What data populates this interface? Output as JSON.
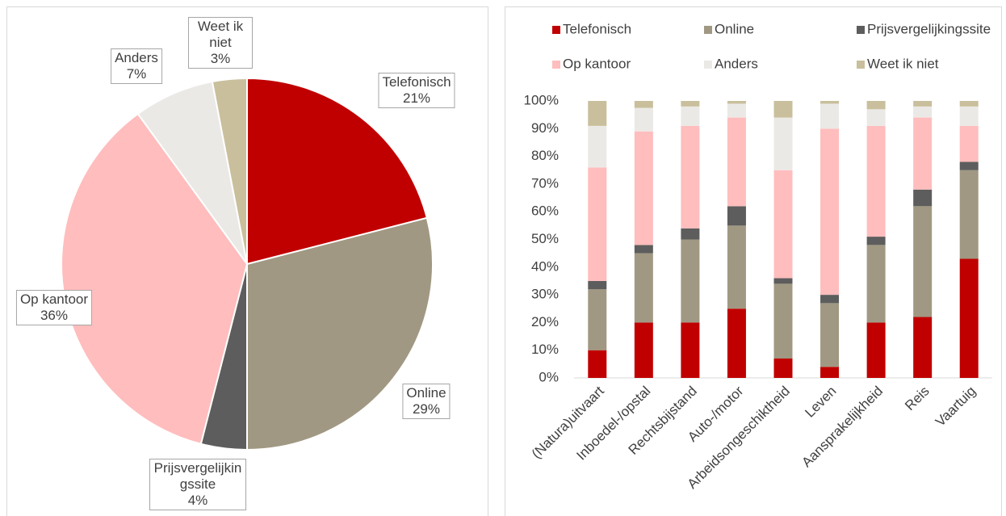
{
  "chart_data": [
    {
      "type": "pie",
      "categories": [
        "Telefonisch",
        "Online",
        "Prijsvergelijkingssite",
        "Op kantoor",
        "Anders",
        "Weet ik niet"
      ],
      "values": [
        21,
        29,
        4,
        36,
        7,
        3
      ],
      "value_labels": [
        "21%",
        "29%",
        "4%",
        "36%",
        "7%",
        "3%"
      ],
      "colors": [
        "#c00000",
        "#a09882",
        "#5d5d5d",
        "#ffbdbd",
        "#ebe9e6",
        "#c9bf9c"
      ]
    },
    {
      "type": "bar",
      "stacked": true,
      "categories": [
        "(Natura)uitvaart",
        "Inboedel-/opstal",
        "Rechtsbijstand",
        "Auto-/motor",
        "Arbeidsongeschiktheid",
        "Leven",
        "Aansprakelijkheid",
        "Reis",
        "Vaartuig"
      ],
      "series": [
        {
          "name": "Telefonisch",
          "color": "#c00000",
          "values": [
            10,
            20,
            20,
            25,
            7,
            4,
            20,
            22,
            43
          ]
        },
        {
          "name": "Online",
          "color": "#a09882",
          "values": [
            22,
            25,
            30,
            30,
            27,
            23,
            28,
            40,
            32
          ]
        },
        {
          "name": "Prijsvergelijkingssite",
          "color": "#5d5d5d",
          "values": [
            3,
            3,
            4,
            7,
            2,
            3,
            3,
            6,
            3
          ]
        },
        {
          "name": "Op kantoor",
          "color": "#ffbdbd",
          "values": [
            41,
            41,
            37,
            32,
            39,
            60,
            40,
            26,
            13
          ]
        },
        {
          "name": "Anders",
          "color": "#ebe9e6",
          "values": [
            15,
            8.5,
            7,
            5,
            19,
            9,
            6,
            4,
            7
          ]
        },
        {
          "name": "Weet ik niet",
          "color": "#c9bf9c",
          "values": [
            9,
            2.5,
            2,
            1,
            6,
            1,
            3,
            2,
            2
          ]
        }
      ],
      "ylim": [
        0,
        100
      ],
      "yticks": [
        {
          "value": 0,
          "label": "0%"
        },
        {
          "value": 10,
          "label": "10%"
        },
        {
          "value": 20,
          "label": "20%"
        },
        {
          "value": 30,
          "label": "30%"
        },
        {
          "value": 40,
          "label": "40%"
        },
        {
          "value": 50,
          "label": "50%"
        },
        {
          "value": 60,
          "label": "60%"
        },
        {
          "value": 70,
          "label": "70%"
        },
        {
          "value": 80,
          "label": "80%"
        },
        {
          "value": 90,
          "label": "90%"
        },
        {
          "value": 100,
          "label": "100%"
        }
      ],
      "grid": false,
      "legend": "top"
    }
  ]
}
